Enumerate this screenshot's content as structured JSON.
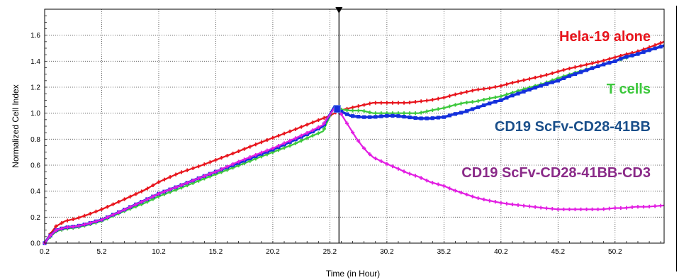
{
  "chart_data": {
    "type": "line",
    "title": "",
    "xlabel": "Time (in Hour)",
    "ylabel": "Normalized Cell Index",
    "xlim": [
      0.2,
      54.5
    ],
    "ylim": [
      0,
      1.8
    ],
    "x_ticks": [
      0.2,
      5.2,
      10.2,
      15.2,
      20.2,
      25.2,
      30.2,
      35.2,
      40.2,
      45.2,
      50.2
    ],
    "x_tick_labels": [
      "0.2",
      "5.2",
      "10.2",
      "15.2",
      "20.2",
      "25.2",
      "30.2",
      "35.2",
      "40.2",
      "45.2",
      "50.2"
    ],
    "y_ticks": [
      0,
      0.2,
      0.4,
      0.6,
      0.8,
      1.0,
      1.2,
      1.4,
      1.6
    ],
    "y_tick_labels": [
      "0.0",
      "0.2",
      "0.4",
      "0.6",
      "0.8",
      "1.0",
      "1.2",
      "1.4",
      "1.6"
    ],
    "grid": true,
    "marker_line_x": 26,
    "series": [
      {
        "name": "Hela-19 alone",
        "color": "#e8141c",
        "points": [
          [
            0.2,
            0.0
          ],
          [
            0.6,
            0.06
          ],
          [
            1.2,
            0.13
          ],
          [
            2,
            0.17
          ],
          [
            3,
            0.19
          ],
          [
            4,
            0.22
          ],
          [
            5.2,
            0.26
          ],
          [
            7,
            0.33
          ],
          [
            9,
            0.41
          ],
          [
            10.2,
            0.47
          ],
          [
            12,
            0.54
          ],
          [
            14,
            0.6
          ],
          [
            15.2,
            0.64
          ],
          [
            17,
            0.7
          ],
          [
            19,
            0.77
          ],
          [
            20.2,
            0.81
          ],
          [
            22,
            0.87
          ],
          [
            24,
            0.94
          ],
          [
            25.2,
            0.98
          ],
          [
            26,
            1.02
          ],
          [
            27,
            1.04
          ],
          [
            28,
            1.06
          ],
          [
            29,
            1.08
          ],
          [
            30.2,
            1.08
          ],
          [
            31,
            1.08
          ],
          [
            32,
            1.08
          ],
          [
            33,
            1.09
          ],
          [
            34,
            1.1
          ],
          [
            35.2,
            1.12
          ],
          [
            36,
            1.14
          ],
          [
            37,
            1.16
          ],
          [
            38,
            1.18
          ],
          [
            39,
            1.19
          ],
          [
            40.2,
            1.21
          ],
          [
            41,
            1.23
          ],
          [
            42,
            1.25
          ],
          [
            43,
            1.27
          ],
          [
            44,
            1.29
          ],
          [
            45.2,
            1.32
          ],
          [
            46,
            1.34
          ],
          [
            47,
            1.36
          ],
          [
            48,
            1.38
          ],
          [
            49,
            1.4
          ],
          [
            50.2,
            1.43
          ],
          [
            51,
            1.45
          ],
          [
            52,
            1.47
          ],
          [
            53,
            1.5
          ],
          [
            54.5,
            1.55
          ]
        ]
      },
      {
        "name": "T cells",
        "color": "#3cc83c",
        "points": [
          [
            0.2,
            0.0
          ],
          [
            0.6,
            0.04
          ],
          [
            1.2,
            0.09
          ],
          [
            2,
            0.11
          ],
          [
            3,
            0.12
          ],
          [
            4,
            0.14
          ],
          [
            5.2,
            0.17
          ],
          [
            7,
            0.24
          ],
          [
            9,
            0.31
          ],
          [
            10.2,
            0.36
          ],
          [
            12,
            0.42
          ],
          [
            14,
            0.49
          ],
          [
            15.2,
            0.53
          ],
          [
            17,
            0.59
          ],
          [
            19,
            0.66
          ],
          [
            20.2,
            0.7
          ],
          [
            22,
            0.76
          ],
          [
            23.5,
            0.82
          ],
          [
            24.6,
            0.86
          ],
          [
            25.6,
            1.05
          ],
          [
            26,
            1.03
          ],
          [
            27,
            1.02
          ],
          [
            28,
            1.02
          ],
          [
            29,
            1.0
          ],
          [
            30.2,
            1.0
          ],
          [
            31,
            1.0
          ],
          [
            32,
            1.0
          ],
          [
            33,
            1.0
          ],
          [
            34,
            1.02
          ],
          [
            35.2,
            1.04
          ],
          [
            36,
            1.06
          ],
          [
            37,
            1.08
          ],
          [
            38,
            1.09
          ],
          [
            39,
            1.11
          ],
          [
            40.2,
            1.13
          ],
          [
            42,
            1.18
          ],
          [
            44,
            1.23
          ],
          [
            45.2,
            1.27
          ],
          [
            47,
            1.32
          ],
          [
            49,
            1.37
          ],
          [
            50.2,
            1.4
          ],
          [
            52,
            1.45
          ],
          [
            54.5,
            1.52
          ]
        ]
      },
      {
        "name": "CD19 ScFv-CD28-41BB",
        "color": "#1430dc",
        "points": [
          [
            0.2,
            0.0
          ],
          [
            0.6,
            0.05
          ],
          [
            1.2,
            0.1
          ],
          [
            2,
            0.12
          ],
          [
            3,
            0.13
          ],
          [
            4,
            0.15
          ],
          [
            5.2,
            0.18
          ],
          [
            7,
            0.25
          ],
          [
            9,
            0.33
          ],
          [
            10.2,
            0.38
          ],
          [
            12,
            0.44
          ],
          [
            14,
            0.51
          ],
          [
            15.2,
            0.55
          ],
          [
            17,
            0.61
          ],
          [
            19,
            0.68
          ],
          [
            20.2,
            0.72
          ],
          [
            22,
            0.79
          ],
          [
            23.5,
            0.85
          ],
          [
            24.6,
            0.9
          ],
          [
            25.6,
            1.05
          ],
          [
            26,
            1.02
          ],
          [
            27,
            0.98
          ],
          [
            28,
            0.97
          ],
          [
            29,
            0.97
          ],
          [
            30.2,
            0.98
          ],
          [
            31,
            0.98
          ],
          [
            32,
            0.97
          ],
          [
            33,
            0.96
          ],
          [
            34,
            0.96
          ],
          [
            35.2,
            0.97
          ],
          [
            36,
            0.99
          ],
          [
            37,
            1.01
          ],
          [
            38,
            1.04
          ],
          [
            39,
            1.07
          ],
          [
            40.2,
            1.1
          ],
          [
            41,
            1.13
          ],
          [
            42,
            1.16
          ],
          [
            43,
            1.19
          ],
          [
            44,
            1.22
          ],
          [
            45.2,
            1.25
          ],
          [
            46,
            1.28
          ],
          [
            47,
            1.31
          ],
          [
            48,
            1.34
          ],
          [
            49,
            1.37
          ],
          [
            50.2,
            1.4
          ],
          [
            51,
            1.43
          ],
          [
            52,
            1.45
          ],
          [
            53,
            1.48
          ],
          [
            54.5,
            1.52
          ]
        ]
      },
      {
        "name": "CD19 ScFv-CD28-41BB-CD3",
        "color": "#e21ee2",
        "points": [
          [
            0.2,
            0.0
          ],
          [
            0.6,
            0.05
          ],
          [
            1.2,
            0.1
          ],
          [
            2,
            0.12
          ],
          [
            3,
            0.13
          ],
          [
            4,
            0.15
          ],
          [
            5.2,
            0.18
          ],
          [
            7,
            0.25
          ],
          [
            9,
            0.33
          ],
          [
            10.2,
            0.38
          ],
          [
            12,
            0.44
          ],
          [
            14,
            0.51
          ],
          [
            15.2,
            0.55
          ],
          [
            17,
            0.62
          ],
          [
            19,
            0.69
          ],
          [
            20.2,
            0.73
          ],
          [
            22,
            0.8
          ],
          [
            23.5,
            0.86
          ],
          [
            24.6,
            0.91
          ],
          [
            25.6,
            1.04
          ],
          [
            26,
            1.02
          ],
          [
            26.5,
            0.95
          ],
          [
            27,
            0.88
          ],
          [
            27.5,
            0.81
          ],
          [
            28,
            0.75
          ],
          [
            28.5,
            0.7
          ],
          [
            29,
            0.66
          ],
          [
            30.2,
            0.61
          ],
          [
            31,
            0.58
          ],
          [
            32,
            0.54
          ],
          [
            33,
            0.51
          ],
          [
            34,
            0.47
          ],
          [
            35.2,
            0.44
          ],
          [
            36,
            0.41
          ],
          [
            37,
            0.38
          ],
          [
            38,
            0.35
          ],
          [
            39,
            0.33
          ],
          [
            40.2,
            0.31
          ],
          [
            41,
            0.3
          ],
          [
            42,
            0.29
          ],
          [
            43,
            0.28
          ],
          [
            44,
            0.27
          ],
          [
            45.2,
            0.26
          ],
          [
            46,
            0.26
          ],
          [
            47,
            0.26
          ],
          [
            48,
            0.26
          ],
          [
            49,
            0.26
          ],
          [
            50.2,
            0.27
          ],
          [
            51,
            0.27
          ],
          [
            52,
            0.28
          ],
          [
            53,
            0.28
          ],
          [
            54.5,
            0.29
          ]
        ]
      }
    ],
    "annotations": [
      {
        "text": "Hela-19 alone",
        "color": "#e8141c"
      },
      {
        "text": "T cells",
        "color": "#3cc83c"
      },
      {
        "text": "CD19 ScFv-CD28-41BB",
        "color": "#1a4f8a"
      },
      {
        "text": "CD19 ScFv-CD28-41BB-CD3",
        "color": "#8a2a88"
      }
    ]
  }
}
